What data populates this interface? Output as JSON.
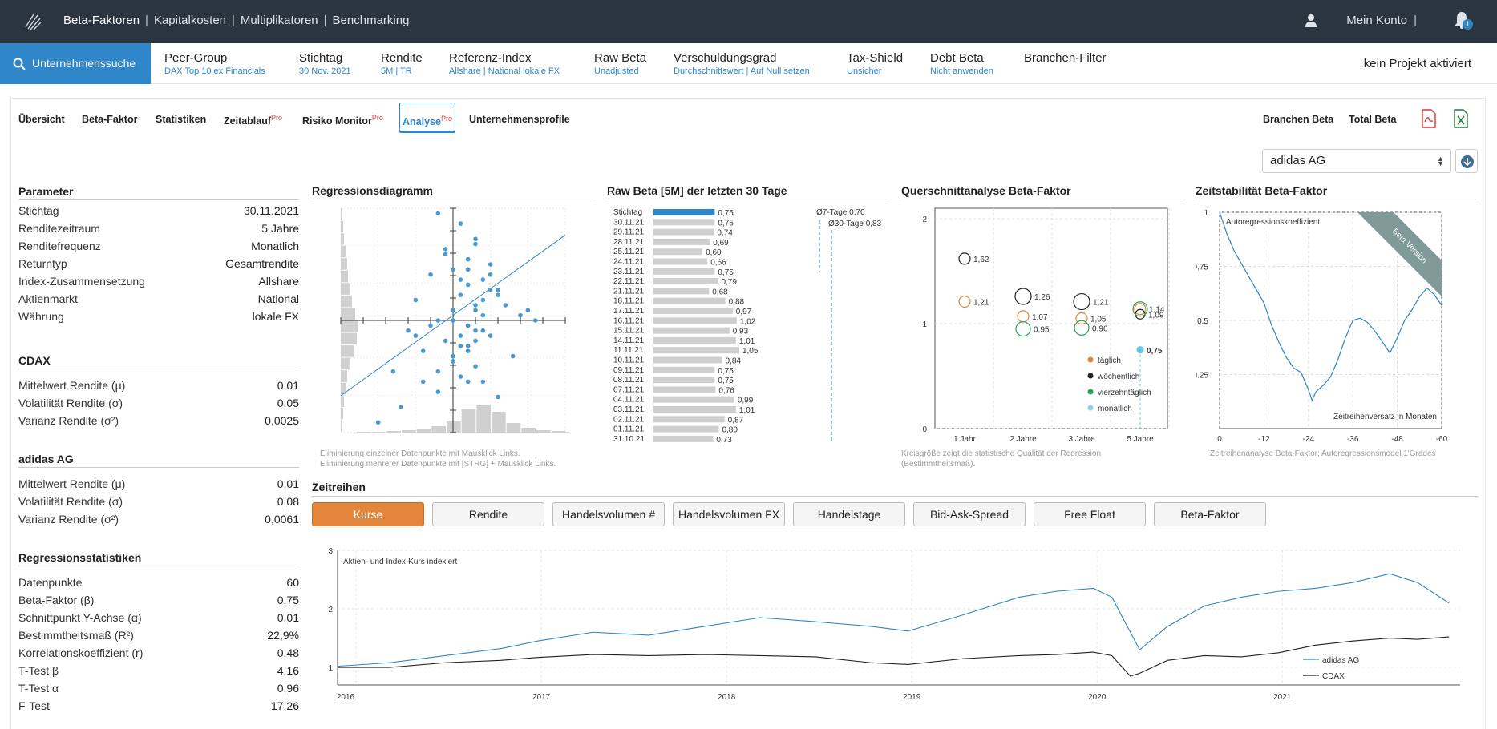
{
  "topbar": {
    "nav": [
      "Beta-Faktoren",
      "Kapitalkosten",
      "Multiplikatoren",
      "Benchmarking"
    ],
    "account": "Mein Konto",
    "notifications": "1"
  },
  "secbar": {
    "search": "Unternehmenssuche",
    "params": [
      {
        "title": "Peer-Group",
        "sub": "DAX Top 10 ex Financials"
      },
      {
        "title": "Stichtag",
        "sub": "30 Nov. 2021"
      },
      {
        "title": "Rendite",
        "sub": "5M | TR"
      },
      {
        "title": "Referenz-Index",
        "sub": "Allshare | National lokale FX"
      },
      {
        "title": "Raw Beta",
        "sub": "Unadjusted"
      },
      {
        "title": "Verschuldungsgrad",
        "sub": "Durchschnittswert | Auf Null setzen"
      },
      {
        "title": "Tax-Shield",
        "sub": "Unsicher"
      },
      {
        "title": "Debt Beta",
        "sub": "Nicht anwenden"
      },
      {
        "title": "Branchen-Filter",
        "sub": ""
      }
    ],
    "project": "kein Projekt aktiviert"
  },
  "tabs": [
    {
      "label": "Übersicht",
      "sup": ""
    },
    {
      "label": "Beta-Faktor",
      "sup": ""
    },
    {
      "label": "Statistiken",
      "sup": ""
    },
    {
      "label": "Zeitablauf",
      "sup": "Pro"
    },
    {
      "label": "Risiko Monitor",
      "sup": "Pro"
    },
    {
      "label": "Analyse",
      "sup": "Pro"
    },
    {
      "label": "Unternehmensprofile",
      "sup": ""
    }
  ],
  "right_tabs": [
    "Branchen Beta",
    "Total Beta"
  ],
  "company_select": "adidas AG",
  "left": {
    "parameter": {
      "title": "Parameter",
      "rows": [
        {
          "k": "Stichtag",
          "v": "30.11.2021"
        },
        {
          "k": "Renditezeitraum",
          "v": "5 Jahre"
        },
        {
          "k": "Renditefrequenz",
          "v": "Monatlich"
        },
        {
          "k": "Returntyp",
          "v": "Gesamtrendite"
        },
        {
          "k": "Index-Zusammensetzung",
          "v": "Allshare"
        },
        {
          "k": "Aktienmarkt",
          "v": "National"
        },
        {
          "k": "Währung",
          "v": "lokale FX"
        }
      ]
    },
    "cdax": {
      "title": "CDAX",
      "rows": [
        {
          "k": "Mittelwert Rendite (μ)",
          "v": "0,01"
        },
        {
          "k": "Volatilität Rendite (σ)",
          "v": "0,05"
        },
        {
          "k": "Varianz Rendite (σ²)",
          "v": "0,0025"
        }
      ]
    },
    "adidas": {
      "title": "adidas AG",
      "rows": [
        {
          "k": "Mittelwert Rendite (μ)",
          "v": "0,01"
        },
        {
          "k": "Volatilität Rendite (σ)",
          "v": "0,08"
        },
        {
          "k": "Varianz Rendite (σ²)",
          "v": "0,0061"
        }
      ]
    },
    "regression": {
      "title": "Regressionsstatistiken",
      "rows": [
        {
          "k": "Datenpunkte",
          "v": "60"
        },
        {
          "k": "Beta-Faktor (β)",
          "v": "0,75"
        },
        {
          "k": "Schnittpunkt Y-Achse (α)",
          "v": "0,01"
        },
        {
          "k": "Bestimmtheitsmaß (R²)",
          "v": "22,9%"
        },
        {
          "k": "Korrelationskoeffizient (r)",
          "v": "0,48"
        },
        {
          "k": "T-Test β",
          "v": "4,16"
        },
        {
          "k": "T-Test α",
          "v": "0,96"
        },
        {
          "k": "F-Test",
          "v": "17,26"
        }
      ]
    }
  },
  "panels": {
    "regression": {
      "title": "Regressionsdiagramm",
      "note1": "Eliminierung einzelner Datenpunkte mit Mausklick Links.",
      "note2": "Eliminierung mehrerer Datenpunkte mit [STRG] + Mausklick Links."
    },
    "rawbeta": {
      "title": "Raw Beta [5M] der letzten 30 Tage",
      "avg7": "Ø7-Tage 0,70",
      "avg30": "Ø30-Tage 0,83"
    },
    "cross": {
      "title": "Querschnittanalyse Beta-Faktor",
      "note1": "Kreisgröße zeigt die statistische Qualität der Regression",
      "note2": "(Bestimmtheitsmaß)."
    },
    "stability": {
      "title": "Zeitstabilität Beta-Faktor",
      "label": "Autoregressionskoeffizient",
      "xlabel": "Zeitreihenversatz in Monaten",
      "ribbon": "Beta Version",
      "note": "Zeitreihenanalyse Beta-Faktor; Autoregressionsmodel 1'Grades"
    }
  },
  "zeitreihen": {
    "title": "Zeitreihen",
    "buttons": [
      "Kurse",
      "Rendite",
      "Handelsvolumen #",
      "Handelsvolumen FX",
      "Handelstage",
      "Bid-Ask-Spread",
      "Free Float",
      "Beta-Faktor"
    ],
    "active": "Kurse"
  },
  "colors": {
    "accent": "#2f86c9",
    "active_button": "#e3853b",
    "topbar": "#2b3540"
  },
  "chart_data": [
    {
      "type": "scatter",
      "name": "Regressionsdiagramm",
      "x": [
        -0.02,
        0.01,
        0.03,
        -0.01,
        0.02,
        0.0,
        0.05,
        0.04,
        -0.03,
        0.06,
        0.02,
        0.01,
        -0.05,
        0.03,
        0.0,
        0.07,
        -0.02,
        0.04,
        0.02,
        -0.06,
        0.01,
        0.03,
        -0.01,
        0.05,
        0.02,
        -0.04,
        0.08,
        0.0,
        0.03,
        -0.08,
        0.01,
        0.04,
        -0.02,
        0.06,
        0.02,
        -0.03,
        0.05,
        0.1,
        0.03,
        -0.01,
        0.02,
        0.0,
        -0.07,
        0.04,
        0.01,
        0.11,
        0.03,
        -0.04,
        0.06,
        -0.1,
        0.02,
        0.05,
        0.0,
        0.03,
        -0.02,
        0.01,
        0.04,
        0.09,
        -0.05,
        0.02
      ],
      "y": [
        0.21,
        0.19,
        0.15,
        0.13,
        0.12,
        0.1,
        0.11,
        0.08,
        0.09,
        0.06,
        0.07,
        0.05,
        0.04,
        0.03,
        0.02,
        0.03,
        0.0,
        0.01,
        -0.01,
        -0.02,
        -0.03,
        -0.02,
        -0.04,
        -0.03,
        -0.05,
        -0.06,
        -0.07,
        -0.07,
        -0.09,
        -0.1,
        -0.11,
        -0.12,
        -0.14,
        -0.15,
        -0.06,
        -0.01,
        0.06,
        0.02,
        0.16,
        0.14,
        -0.12,
        -0.08,
        -0.17,
        0.04,
        -0.05,
        0.0,
        0.02,
        -0.12,
        0.05,
        -0.2,
        0.12,
        0.09,
        0.0,
        -0.04,
        -0.1,
        0.08,
        -0.02,
        0.01,
        -0.03,
        0.1
      ],
      "regression": {
        "beta": 0.75,
        "alpha": 0.01
      }
    },
    {
      "type": "bar",
      "name": "Raw Beta [5M] der letzten 30 Tage",
      "categories": [
        "Stichtag",
        "30.11.21",
        "29.11.21",
        "28.11.21",
        "25.11.21",
        "24.11.21",
        "23.11.21",
        "22.11.21",
        "21.11.21",
        "18.11.21",
        "17.11.21",
        "16.11.21",
        "15.11.21",
        "14.11.21",
        "11.11.21",
        "10.11.21",
        "09.11.21",
        "08.11.21",
        "07.11.21",
        "04.11.21",
        "03.11.21",
        "02.11.21",
        "01.11.21",
        "31.10.21"
      ],
      "values": [
        0.75,
        0.75,
        0.74,
        0.69,
        0.6,
        0.66,
        0.75,
        0.79,
        0.68,
        0.88,
        0.97,
        1.02,
        0.93,
        1.01,
        1.05,
        0.84,
        0.75,
        0.75,
        0.76,
        0.99,
        1.01,
        0.87,
        0.8,
        0.73
      ],
      "labels": [
        "0,75",
        "0,75",
        "0,74",
        "0,69",
        "0,60",
        "0,66",
        "0,75",
        "0,79",
        "0,68",
        "0,88",
        "0,97",
        "1,02",
        "0,93",
        "1,01",
        "1,05",
        "0,84",
        "0,75",
        "0,75",
        "0,76",
        "0,99",
        "1,01",
        "0,87",
        "0,80",
        "0,73"
      ]
    },
    {
      "type": "scatter",
      "name": "Querschnittanalyse Beta-Faktor",
      "categories": [
        "1 Jahr",
        "2 Jahre",
        "3 Jahre",
        "5 Jahre"
      ],
      "yticks": [
        "0",
        "1",
        "2"
      ],
      "ylim": [
        0,
        2.1
      ],
      "series": [
        {
          "name": "täglich",
          "color": "#e3853b",
          "points": [
            {
              "x": 0,
              "y": 1.21,
              "label": "1,21"
            },
            {
              "x": 1,
              "y": 1.07,
              "label": "1,07"
            },
            {
              "x": 2,
              "y": 1.05,
              "label": "1,05"
            },
            {
              "x": 3,
              "y": 1.14,
              "label": "1,14"
            }
          ]
        },
        {
          "name": "wöchentlich",
          "color": "#222222",
          "points": [
            {
              "x": 0,
              "y": 1.62,
              "label": "1,62"
            },
            {
              "x": 1,
              "y": 1.26,
              "label": "1,26"
            },
            {
              "x": 2,
              "y": 1.21,
              "label": "1,21"
            },
            {
              "x": 3,
              "y": 1.09,
              "label": "1,09"
            }
          ]
        },
        {
          "name": "vierzehntäglich",
          "color": "#2aa35a",
          "points": [
            {
              "x": 1,
              "y": 0.95,
              "label": "0,95"
            },
            {
              "x": 2,
              "y": 0.96,
              "label": "0,96"
            },
            {
              "x": 3,
              "y": 1.14,
              "label": ""
            }
          ]
        },
        {
          "name": "monatlich",
          "color": "#6cc4e0",
          "points": [
            {
              "x": 3,
              "y": 0.75,
              "label": "0,75"
            }
          ]
        }
      ]
    },
    {
      "type": "line",
      "name": "Zeitstabilität Beta-Faktor",
      "ylabel": "Autoregressionskoeffizient",
      "xlabel": "Zeitreihenversatz in Monaten",
      "xticks": [
        "0",
        "-12",
        "-24",
        "-36",
        "-48",
        "-60"
      ],
      "yticks": [
        "1",
        "0.75",
        "0.5",
        "0.25"
      ],
      "ylim": [
        0,
        1
      ],
      "x": [
        0,
        -2,
        -4,
        -6,
        -8,
        -10,
        -12,
        -14,
        -16,
        -18,
        -20,
        -22,
        -24,
        -25,
        -26,
        -28,
        -30,
        -32,
        -34,
        -36,
        -38,
        -40,
        -42,
        -44,
        -46,
        -48,
        -50,
        -52,
        -54,
        -56,
        -58,
        -60
      ],
      "y": [
        1.0,
        0.9,
        0.82,
        0.76,
        0.7,
        0.64,
        0.58,
        0.48,
        0.4,
        0.33,
        0.28,
        0.26,
        0.18,
        0.13,
        0.17,
        0.2,
        0.24,
        0.32,
        0.42,
        0.5,
        0.51,
        0.49,
        0.45,
        0.4,
        0.35,
        0.42,
        0.5,
        0.55,
        0.61,
        0.65,
        0.62,
        0.57
      ]
    },
    {
      "type": "line",
      "name": "Kurse",
      "title": "Aktien- und Index-Kurs indexiert",
      "xticks": [
        "2016",
        "2017",
        "2018",
        "2019",
        "2020",
        "2021"
      ],
      "yticks": [
        "1",
        "2",
        "3"
      ],
      "ylim": [
        0.7,
        3
      ],
      "series": [
        {
          "name": "adidas AG",
          "color": "#2f86c9",
          "x": [
            2015.92,
            2016.2,
            2016.5,
            2016.8,
            2017.0,
            2017.3,
            2017.6,
            2017.9,
            2018.2,
            2018.5,
            2018.8,
            2019.0,
            2019.3,
            2019.6,
            2019.8,
            2020.0,
            2020.1,
            2020.2,
            2020.25,
            2020.4,
            2020.6,
            2020.8,
            2021.0,
            2021.2,
            2021.4,
            2021.6,
            2021.75,
            2021.92
          ],
          "y": [
            1.02,
            1.08,
            1.2,
            1.32,
            1.45,
            1.6,
            1.55,
            1.7,
            1.85,
            1.78,
            1.7,
            1.62,
            1.9,
            2.2,
            2.3,
            2.35,
            2.2,
            1.6,
            1.3,
            1.7,
            2.05,
            2.2,
            2.3,
            2.35,
            2.45,
            2.6,
            2.45,
            2.1
          ]
        },
        {
          "name": "CDAX",
          "color": "#222222",
          "x": [
            2015.92,
            2016.2,
            2016.5,
            2016.8,
            2017.0,
            2017.3,
            2017.6,
            2017.9,
            2018.2,
            2018.5,
            2018.8,
            2019.0,
            2019.3,
            2019.6,
            2019.8,
            2020.0,
            2020.1,
            2020.2,
            2020.25,
            2020.4,
            2020.6,
            2020.8,
            2021.0,
            2021.2,
            2021.4,
            2021.6,
            2021.75,
            2021.92
          ],
          "y": [
            1.0,
            1.0,
            1.08,
            1.12,
            1.17,
            1.22,
            1.2,
            1.22,
            1.2,
            1.18,
            1.08,
            1.05,
            1.15,
            1.2,
            1.22,
            1.26,
            1.2,
            0.85,
            0.9,
            1.12,
            1.2,
            1.18,
            1.25,
            1.38,
            1.45,
            1.5,
            1.48,
            1.52
          ]
        }
      ]
    }
  ]
}
